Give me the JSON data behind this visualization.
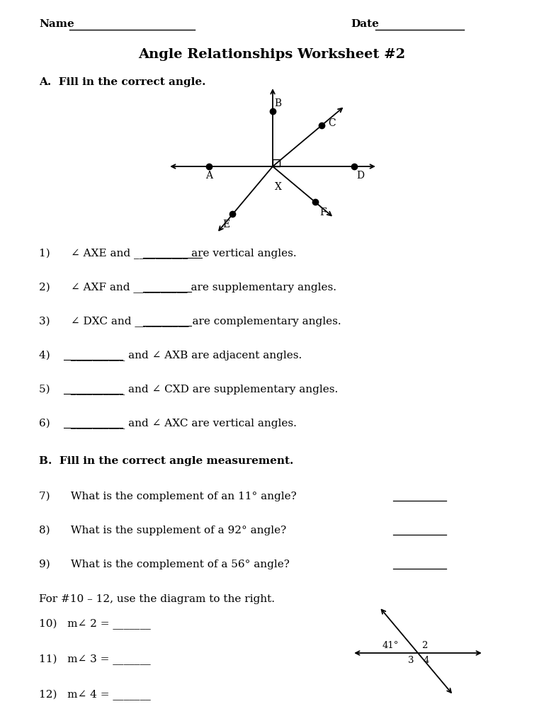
{
  "title": "Angle Relationships Worksheet #2",
  "bg_color": "#ffffff",
  "text_color": "#000000",
  "name_label": "Name",
  "date_label": "Date",
  "section_a_title": "A.  Fill in the correct angle.",
  "section_b_title": "B.  Fill in the correct angle measurement.",
  "q1": "1)      ∠ AXE and __________ are vertical angles.",
  "q2": "2)      ∠ AXF and __________ are supplementary angles.",
  "q3": "3)      ∠ DXC and __________ are complementary angles.",
  "q4": "4)      __________ and ∠ AXB are adjacent angles.",
  "q5": "5)      __________ and ∠ CXD are supplementary angles.",
  "q6": "6)      __________ and ∠ AXC are vertical angles.",
  "q7": "7)      What is the complement of an 11° angle?",
  "q8": "8)      What is the supplement of a 92° angle?",
  "q9": "9)      What is the complement of a 56° angle?",
  "for_text": "For #10 – 12, use the diagram to the right.",
  "q10": "10)   m∠ 2 = _______",
  "q11": "11)   m∠ 3 = _______",
  "q12": "12)   m∠ 4 = _______"
}
